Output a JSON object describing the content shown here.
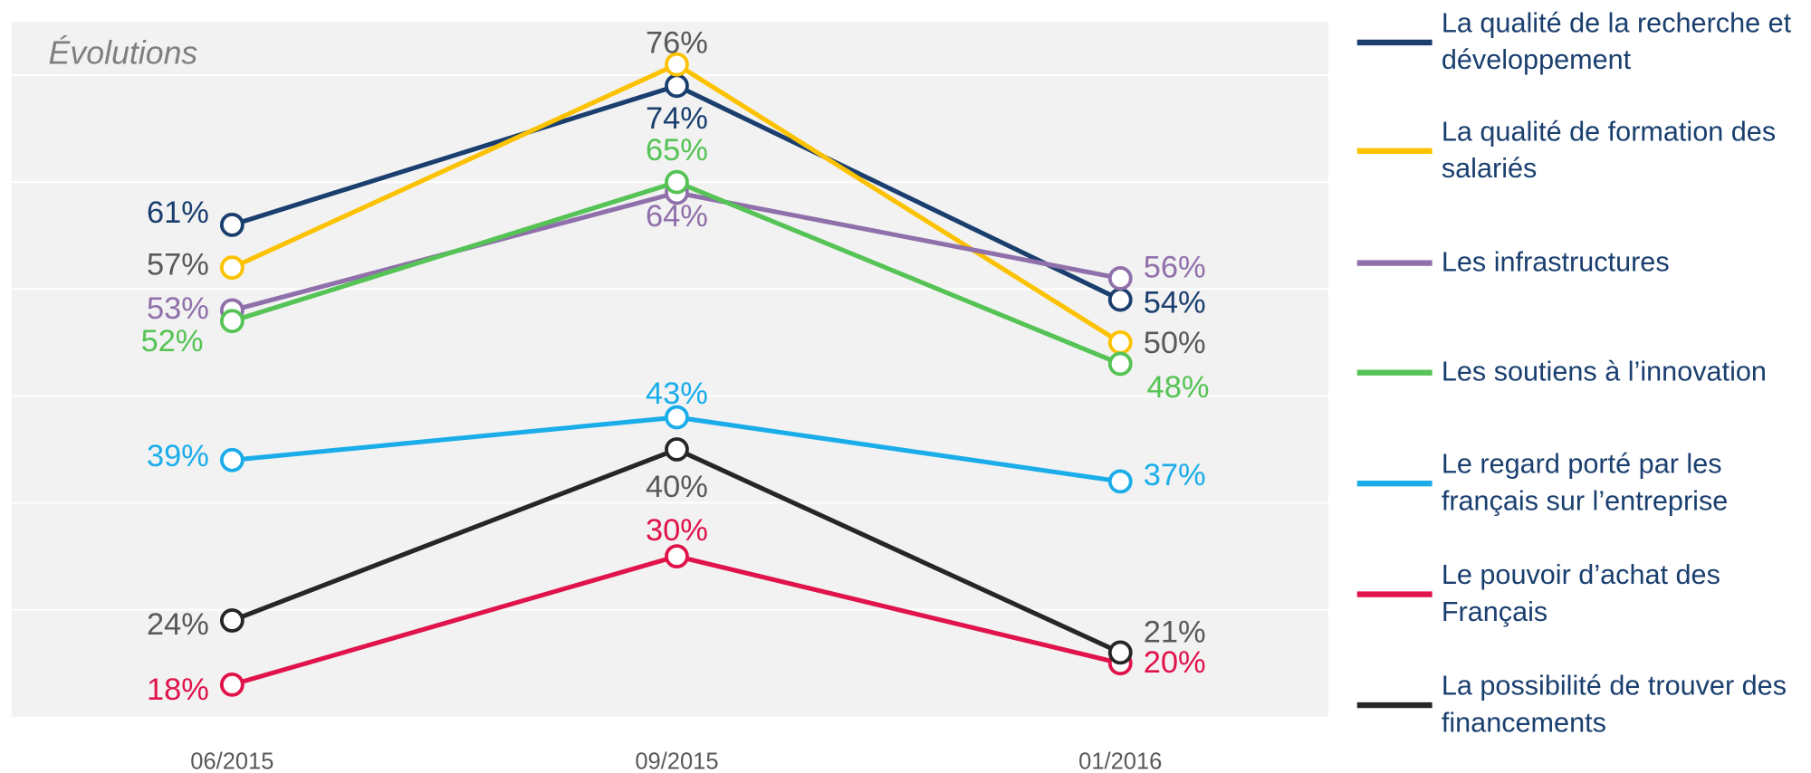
{
  "chart_data": {
    "type": "line",
    "title": "Évolutions",
    "categories": [
      "06/2015",
      "09/2015",
      "01/2016"
    ],
    "ylim": [
      15,
      80
    ],
    "yticks": [
      25,
      35,
      45,
      55,
      65,
      75
    ],
    "grid": true,
    "series": [
      {
        "name": "La qualité de la recherche et développement",
        "color": "#1a3f6f",
        "label_color": "#1a3f6f",
        "values": [
          61,
          74,
          54
        ],
        "value_labels": [
          "61%",
          "74%",
          "54%"
        ]
      },
      {
        "name": "La qualité de formation des salariés",
        "color": "#fcc200",
        "label_color": "#595959",
        "values": [
          57,
          76,
          50
        ],
        "value_labels": [
          "57%",
          "76%",
          "50%"
        ]
      },
      {
        "name": "Les infrastructures",
        "color": "#9070aa",
        "label_color": "#9070aa",
        "values": [
          53,
          64,
          56
        ],
        "value_labels": [
          "53%",
          "64%",
          "56%"
        ]
      },
      {
        "name": "Les soutiens à l’innovation",
        "color": "#55c355",
        "label_color": "#55c355",
        "values": [
          52,
          65,
          48
        ],
        "value_labels": [
          "52%",
          "65%",
          "48%"
        ]
      },
      {
        "name": "Le regard porté par les français sur l’entreprise",
        "color": "#1aadea",
        "label_color": "#1aadea",
        "values": [
          39,
          43,
          37
        ],
        "value_labels": [
          "39%",
          "43%",
          "37%"
        ]
      },
      {
        "name": "Le pouvoir d’achat des Français",
        "color": "#e0134a",
        "label_color": "#e0134a",
        "values": [
          18,
          30,
          20
        ],
        "value_labels": [
          "18%",
          "30%",
          "20%"
        ]
      },
      {
        "name": "La possibilité de trouver des financements",
        "color": "#262626",
        "label_color": "#595959",
        "values": [
          24,
          40,
          21
        ],
        "value_labels": [
          "24%",
          "40%",
          "21%"
        ]
      }
    ]
  }
}
